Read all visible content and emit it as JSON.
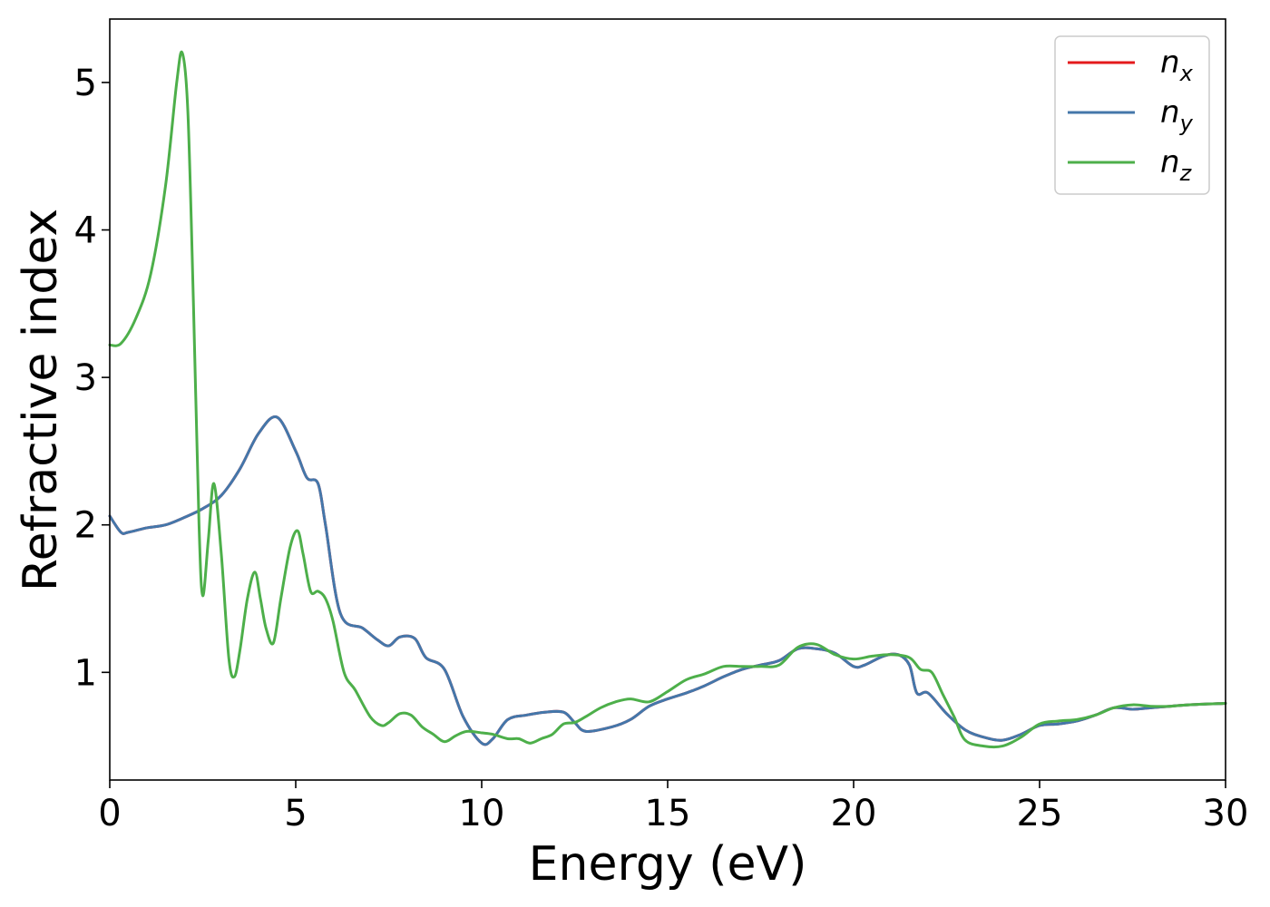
{
  "chart_data": {
    "type": "line",
    "xlabel": "Energy (eV)",
    "ylabel": "Refractive index",
    "xlim": [
      0,
      30
    ],
    "ylim": [
      0.27,
      5.43
    ],
    "xticks": [
      0,
      5,
      10,
      15,
      20,
      25,
      30
    ],
    "yticks": [
      1,
      2,
      3,
      4,
      5
    ],
    "grid": false,
    "legend_position": "top-right",
    "series": [
      {
        "name": "n_x",
        "legend_base": "n",
        "legend_sub": "x",
        "color": "#e41a1c",
        "x": [
          0,
          0.3,
          0.5,
          1,
          1.5,
          2,
          2.5,
          3,
          3.5,
          4,
          4.5,
          5,
          5.3,
          5.6,
          5.8,
          6.2,
          6.8,
          7.2,
          7.5,
          7.8,
          8.2,
          8.5,
          9,
          9.5,
          10,
          10.3,
          10.7,
          11.2,
          11.7,
          12.2,
          12.5,
          12.8,
          13.5,
          14,
          14.5,
          15,
          15.5,
          16,
          16.5,
          17,
          17.5,
          18,
          18.5,
          19,
          19.5,
          20,
          20.3,
          20.8,
          21.2,
          21.5,
          21.7,
          22,
          22.5,
          23,
          23.5,
          24,
          24.5,
          25,
          25.5,
          26,
          26.5,
          27,
          27.5,
          28,
          28.5,
          29,
          30
        ],
        "values": [
          2.06,
          1.95,
          1.95,
          1.98,
          2.0,
          2.05,
          2.11,
          2.2,
          2.38,
          2.62,
          2.73,
          2.5,
          2.32,
          2.28,
          2.0,
          1.4,
          1.3,
          1.22,
          1.18,
          1.24,
          1.23,
          1.1,
          1.02,
          0.7,
          0.52,
          0.55,
          0.68,
          0.71,
          0.73,
          0.73,
          0.66,
          0.6,
          0.63,
          0.68,
          0.77,
          0.82,
          0.86,
          0.91,
          0.97,
          1.02,
          1.05,
          1.08,
          1.16,
          1.16,
          1.13,
          1.04,
          1.05,
          1.11,
          1.12,
          1.05,
          0.86,
          0.86,
          0.72,
          0.61,
          0.56,
          0.54,
          0.58,
          0.64,
          0.65,
          0.67,
          0.71,
          0.76,
          0.75,
          0.76,
          0.77,
          0.78,
          0.79
        ]
      },
      {
        "name": "n_y",
        "legend_base": "n",
        "legend_sub": "y",
        "color": "#4477aa",
        "x": [
          0,
          0.3,
          0.5,
          1,
          1.5,
          2,
          2.5,
          3,
          3.5,
          4,
          4.5,
          5,
          5.3,
          5.6,
          5.8,
          6.2,
          6.8,
          7.2,
          7.5,
          7.8,
          8.2,
          8.5,
          9,
          9.5,
          10,
          10.3,
          10.7,
          11.2,
          11.7,
          12.2,
          12.5,
          12.8,
          13.5,
          14,
          14.5,
          15,
          15.5,
          16,
          16.5,
          17,
          17.5,
          18,
          18.5,
          19,
          19.5,
          20,
          20.3,
          20.8,
          21.2,
          21.5,
          21.7,
          22,
          22.5,
          23,
          23.5,
          24,
          24.5,
          25,
          25.5,
          26,
          26.5,
          27,
          27.5,
          28,
          28.5,
          29,
          30
        ],
        "values": [
          2.06,
          1.95,
          1.95,
          1.98,
          2.0,
          2.05,
          2.11,
          2.2,
          2.38,
          2.62,
          2.73,
          2.5,
          2.32,
          2.28,
          2.0,
          1.4,
          1.3,
          1.22,
          1.18,
          1.24,
          1.23,
          1.1,
          1.02,
          0.7,
          0.52,
          0.55,
          0.68,
          0.71,
          0.73,
          0.73,
          0.66,
          0.6,
          0.63,
          0.68,
          0.77,
          0.82,
          0.86,
          0.91,
          0.97,
          1.02,
          1.05,
          1.08,
          1.16,
          1.16,
          1.13,
          1.04,
          1.05,
          1.11,
          1.12,
          1.05,
          0.86,
          0.86,
          0.72,
          0.61,
          0.56,
          0.54,
          0.58,
          0.64,
          0.65,
          0.67,
          0.71,
          0.76,
          0.75,
          0.76,
          0.77,
          0.78,
          0.79
        ]
      },
      {
        "name": "n_z",
        "legend_base": "n",
        "legend_sub": "z",
        "color": "#4daf4a",
        "x": [
          0,
          0.3,
          0.7,
          1.1,
          1.5,
          1.8,
          1.95,
          2.1,
          2.25,
          2.4,
          2.5,
          2.65,
          2.8,
          3.0,
          3.2,
          3.35,
          3.5,
          3.7,
          3.9,
          4.05,
          4.2,
          4.4,
          4.6,
          4.85,
          5.05,
          5.2,
          5.4,
          5.6,
          5.8,
          6.0,
          6.3,
          6.6,
          7.0,
          7.3,
          7.5,
          7.8,
          8.1,
          8.4,
          8.7,
          9.0,
          9.3,
          9.6,
          10.0,
          10.3,
          10.7,
          11.0,
          11.3,
          11.6,
          11.9,
          12.2,
          12.5,
          12.8,
          13.2,
          13.6,
          14.0,
          14.5,
          15.0,
          15.5,
          16.0,
          16.5,
          17.0,
          17.5,
          18.0,
          18.5,
          19.0,
          19.5,
          20.0,
          20.5,
          21.0,
          21.5,
          21.8,
          22.1,
          22.4,
          22.7,
          23.0,
          23.5,
          24.0,
          24.5,
          25.0,
          25.5,
          26.0,
          26.5,
          27.0,
          27.5,
          28.0,
          28.5,
          29.0,
          30
        ],
        "values": [
          3.22,
          3.23,
          3.4,
          3.7,
          4.3,
          5.0,
          5.2,
          4.8,
          3.5,
          2.0,
          1.52,
          1.9,
          2.28,
          1.8,
          1.1,
          0.97,
          1.15,
          1.5,
          1.68,
          1.5,
          1.3,
          1.2,
          1.5,
          1.85,
          1.96,
          1.8,
          1.55,
          1.55,
          1.5,
          1.35,
          1.0,
          0.88,
          0.7,
          0.64,
          0.66,
          0.72,
          0.71,
          0.63,
          0.58,
          0.53,
          0.57,
          0.6,
          0.59,
          0.58,
          0.55,
          0.55,
          0.52,
          0.55,
          0.58,
          0.65,
          0.66,
          0.7,
          0.76,
          0.8,
          0.82,
          0.8,
          0.87,
          0.95,
          0.99,
          1.04,
          1.04,
          1.04,
          1.05,
          1.17,
          1.19,
          1.12,
          1.09,
          1.11,
          1.12,
          1.1,
          1.02,
          1.0,
          0.85,
          0.7,
          0.54,
          0.5,
          0.5,
          0.56,
          0.65,
          0.67,
          0.68,
          0.71,
          0.76,
          0.78,
          0.77,
          0.77,
          0.78,
          0.79
        ]
      }
    ]
  }
}
